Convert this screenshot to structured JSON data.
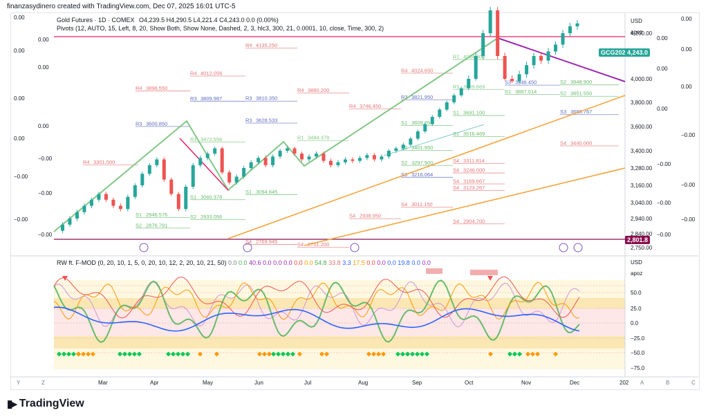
{
  "header": {
    "text": "finanzasydinero created with TradingView.com, Dec 07, 2025 16:01 UTC-5"
  },
  "legend": {
    "symbol": "Gold Futures · 1D · COMEX",
    "ohlc": "O4,239.5  H4,290.5  L4,221.4  C4,243.0  0.0 (0.00%)",
    "pivots": "Pivots (12, AUTO, 15, Left, 8, 20, Show Both, Show None, Dashed, 2, 3, hlc3, 300, 21, 0.0001, 10, close, Time, 300, 2)",
    "indicator_name": "RW ft. F-MOD (0, 20, 10, 1, 5, 0, 20, 10, 12, 2, 20, 10, 21, 50)",
    "indicator_values": [
      {
        "v": "0.0",
        "c": "#787b86"
      },
      {
        "v": "0.0",
        "c": "#4caf50"
      },
      {
        "v": "40.6",
        "c": "#9c27b0"
      },
      {
        "v": "0.0",
        "c": "#9c27b0"
      },
      {
        "v": "0.0",
        "c": "#9c27b0"
      },
      {
        "v": "0.0",
        "c": "#9c27b0"
      },
      {
        "v": "0.0",
        "c": "#f44336"
      },
      {
        "v": "0.0",
        "c": "#ff9800"
      },
      {
        "v": "54.8",
        "c": "#4caf50"
      },
      {
        "v": "33.8",
        "c": "#e57373"
      },
      {
        "v": "3.3",
        "c": "#2962ff"
      },
      {
        "v": "17.5",
        "c": "#ff9800"
      },
      {
        "v": "0.0",
        "c": "#f44336"
      },
      {
        "v": "0.0",
        "c": "#9c27b0"
      },
      {
        "v": "0.0",
        "c": "#2962ff"
      },
      {
        "v": "19.8",
        "c": "#2962ff"
      },
      {
        "v": "0.0",
        "c": "#2962ff"
      },
      {
        "v": "0.0",
        "c": "#9c27b0"
      }
    ]
  },
  "price_axis": {
    "currency": "USD",
    "name": "apoz",
    "ticks": [
      "4,200.00",
      "4,000.00",
      "3,800.00",
      "3,600.00",
      "3,400.00",
      "3,280.00",
      "3,160.00",
      "3,040.00",
      "2,940.00",
      "2,840.00",
      "2,750.00"
    ],
    "tick_prices": [
      4200,
      4000,
      3800,
      3600,
      3400,
      3280,
      3160,
      3040,
      2940,
      2840,
      2750
    ],
    "current_label": "GCG2026",
    "current_value": "4,243.0",
    "low_value": "2,801.8"
  },
  "indicator_axis": {
    "currency": "USD",
    "name": "apoz",
    "ticks": [
      "50.0",
      "25.0",
      "0.0",
      "−25.0",
      "−50.0",
      "−75.0"
    ]
  },
  "left_scale": [
    "0.00",
    "0.00",
    "0.00",
    "0.00",
    "0.00",
    "0.00",
    "0.00",
    "−0.00",
    "−0.00",
    "−0.00",
    "−0.00",
    "−0.00"
  ],
  "right_scale": [
    "0.00",
    "0.00",
    "0.00",
    "0.00",
    "0.00",
    "0.00",
    "−0.00",
    "−0.00",
    "−0.00",
    "−0.00",
    "−0.00",
    "−0.00"
  ],
  "time_axis": {
    "labels": [
      "Mar",
      "Apr",
      "May",
      "Jun",
      "Jul",
      "Aug",
      "Sep",
      "Oct",
      "Nov",
      "Dec",
      "202"
    ],
    "left_buttons": [
      "Y",
      "Z"
    ],
    "right_buttons": [
      "A",
      "B",
      "C"
    ]
  },
  "pivots": [
    {
      "t": "R4",
      "v": "3301.500"
    },
    {
      "t": "R4",
      "v": "3896.550"
    },
    {
      "t": "R3",
      "v": "3809.987"
    },
    {
      "t": "R3",
      "v": "3600.850"
    },
    {
      "t": "R4",
      "v": "4135.250"
    },
    {
      "t": "R4",
      "v": "4012.056"
    },
    {
      "t": "R3",
      "v": "3810.350"
    },
    {
      "t": "R4",
      "v": "3880.200"
    },
    {
      "t": "R3",
      "v": "3628.533"
    },
    {
      "t": "R4",
      "v": "3746.450"
    },
    {
      "t": "R3",
      "v": "3821.950"
    },
    {
      "t": "R4",
      "v": "4024.650"
    },
    {
      "t": "R3",
      "v": "4477.500"
    },
    {
      "t": "R2",
      "v": "4422.214"
    },
    {
      "t": "R2",
      "v": "4353.567"
    },
    {
      "t": "R1",
      "v": "4084.300"
    },
    {
      "t": "S1",
      "v": "3867.014"
    },
    {
      "t": "S2",
      "v": "3851.550"
    },
    {
      "t": "S3",
      "v": "3698.767"
    },
    {
      "t": "S4",
      "v": "3440.000"
    },
    {
      "t": "S1",
      "v": "3516.469"
    },
    {
      "t": "S2",
      "v": "3297.900"
    },
    {
      "t": "S4",
      "v": "3311.814"
    },
    {
      "t": "S4",
      "v": "2904.700"
    },
    {
      "t": "S4",
      "v": "3011.150"
    },
    {
      "t": "S4",
      "v": "2938.950"
    },
    {
      "t": "S4",
      "v": "2751.200"
    },
    {
      "t": "S4",
      "v": "2769.945"
    },
    {
      "t": "S2",
      "v": "2876.791"
    },
    {
      "t": "S1",
      "v": "2946.576"
    },
    {
      "t": "S2",
      "v": "2933.056"
    },
    {
      "t": "S1",
      "v": "3060.378"
    },
    {
      "t": "S1",
      "v": "3094.845"
    },
    {
      "t": "R1",
      "v": "3472.556"
    },
    {
      "t": "R1",
      "v": "3484.378"
    },
    {
      "t": "S1",
      "v": "3691.100"
    },
    {
      "t": "S1",
      "v": "3609.264"
    },
    {
      "t": "S2",
      "v": "3401.950"
    },
    {
      "t": "S3",
      "v": "3216.064"
    },
    {
      "t": "S4",
      "v": "3169.667"
    },
    {
      "t": "S4",
      "v": "3123.267"
    },
    {
      "t": "S4",
      "v": "3246.000"
    },
    {
      "t": "S2",
      "v": "3948.900"
    },
    {
      "t": "R1",
      "v": "3909.669"
    },
    {
      "t": "S3",
      "v": "3946.450"
    }
  ],
  "colors": {
    "up": "#26a69a",
    "down": "#ef5350",
    "pivot_r": "#e57373",
    "pivot_s": "#4caf50",
    "accent_blue": "#2962ff",
    "purple": "#9c27b0",
    "orange": "#f7a33a",
    "green": "#66bb6a"
  }
}
